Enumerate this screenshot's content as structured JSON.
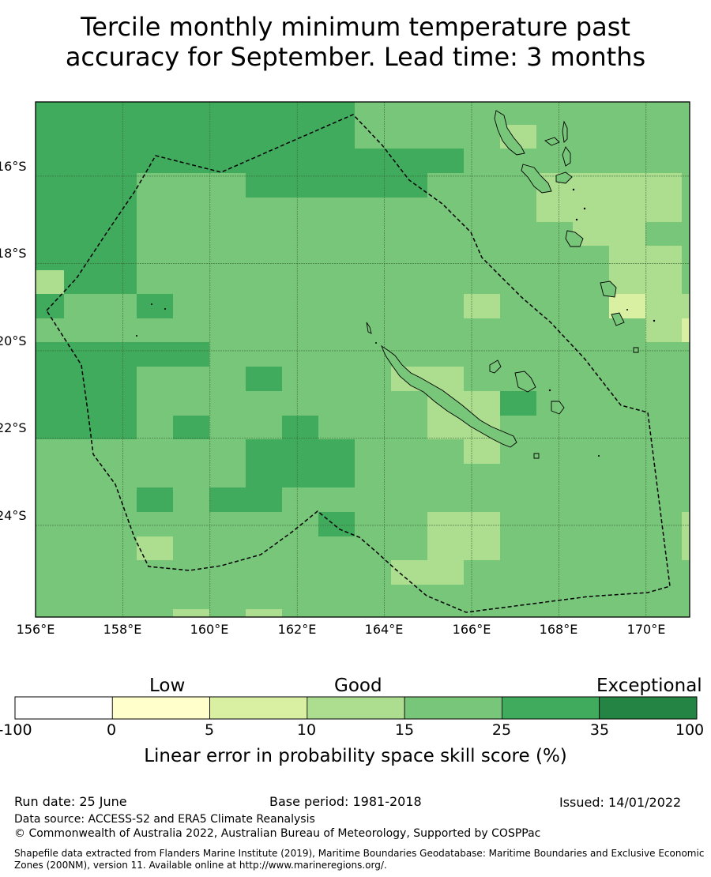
{
  "title_line1": "Tercile monthly minimum temperature past",
  "title_line2": "accuracy for September. Lead time: 3 months",
  "map": {
    "lat_labels": [
      "16°S",
      "18°S",
      "20°S",
      "22°S",
      "24°S"
    ],
    "lon_labels": [
      "156°E",
      "158°E",
      "160°E",
      "162°E",
      "164°E",
      "166°E",
      "168°E",
      "170°E"
    ],
    "lon_range": [
      156,
      171
    ],
    "lat_range": [
      -14.3,
      -26.1
    ],
    "skill_class_colors": [
      "#ffffcc",
      "#d9f0a3",
      "#addd8e",
      "#78c679",
      "#41ab5d",
      "#238443"
    ],
    "background_class": 3,
    "boundary_style": "dashed"
  },
  "colorbar": {
    "categories": [
      {
        "label": "Low"
      },
      {
        "label": "Good"
      },
      {
        "label": "Exceptional"
      }
    ],
    "ticks": [
      "-100",
      "0",
      "5",
      "10",
      "15",
      "25",
      "35",
      "100"
    ],
    "segments": [
      {
        "from": "-100",
        "to": "0",
        "color": "#ffffff"
      },
      {
        "from": "0",
        "to": "5",
        "color": "#ffffcc"
      },
      {
        "from": "5",
        "to": "10",
        "color": "#d9f0a3"
      },
      {
        "from": "10",
        "to": "15",
        "color": "#addd8e"
      },
      {
        "from": "15",
        "to": "25",
        "color": "#78c679"
      },
      {
        "from": "25",
        "to": "35",
        "color": "#41ab5d"
      },
      {
        "from": "35",
        "to": "100",
        "color": "#238443"
      }
    ],
    "title": "Linear error in probability space skill score (%)"
  },
  "footer": {
    "run_date": "Run date: 25 June",
    "base_period": "Base period: 1981-2018",
    "issued": "Issued: 14/01/2022",
    "data_source": "Data source: ACCESS-S2 and ERA5 Climate Reanalysis",
    "copyright": "© Commonwealth of Australia 2022, Australian Bureau of Meteorology, Supported by COSPPac",
    "shapefile_line1": "Shapefile data extracted from Flanders Marine Institute (2019), Maritime Boundaries Geodatabase: Maritime Boundaries and Exclusive Economic",
    "shapefile_line2": "Zones (200NM), version 11. Available online at http://www.marineregions.org/."
  }
}
